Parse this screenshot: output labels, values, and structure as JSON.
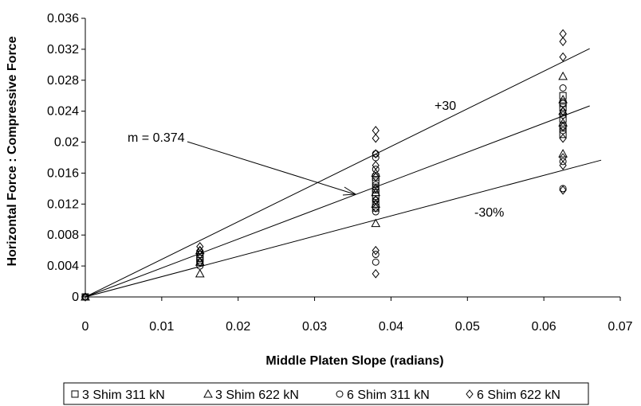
{
  "chart_data": {
    "type": "scatter",
    "title": "",
    "xlabel": "Middle Platen Slope (radians)",
    "ylabel": "Horizontal Force : Compressive Force",
    "xlim": [
      0,
      0.07
    ],
    "ylim": [
      0,
      0.036
    ],
    "x_ticks": [
      "0",
      "0.01",
      "0.02",
      "0.03",
      "0.04",
      "0.05",
      "0.06",
      "0.07"
    ],
    "y_ticks": [
      "0",
      "0.004",
      "0.008",
      "0.012",
      "0.016",
      "0.02",
      "0.024",
      "0.028",
      "0.032",
      "0.036"
    ],
    "grid": false,
    "legend_position": "bottom",
    "series": [
      {
        "name": "3 Shim 311 kN",
        "marker": "square",
        "x": [
          0,
          0.015,
          0.015,
          0.015,
          0.038,
          0.038,
          0.038,
          0.038,
          0.038,
          0.038,
          0.038,
          0.0625,
          0.0625,
          0.0625,
          0.0625,
          0.0625,
          0.0625
        ],
        "y": [
          0,
          0.0045,
          0.005,
          0.0055,
          0.0115,
          0.012,
          0.013,
          0.0135,
          0.014,
          0.015,
          0.0155,
          0.021,
          0.022,
          0.023,
          0.0245,
          0.025,
          0.026
        ]
      },
      {
        "name": "3 Shim 622 kN",
        "marker": "triangle",
        "x": [
          0,
          0.015,
          0.015,
          0.015,
          0.038,
          0.038,
          0.038,
          0.038,
          0.0625,
          0.0625,
          0.0625,
          0.0625,
          0.0625
        ],
        "y": [
          0,
          0.003,
          0.0045,
          0.006,
          0.0095,
          0.012,
          0.0135,
          0.016,
          0.0185,
          0.0225,
          0.024,
          0.0255,
          0.0285
        ]
      },
      {
        "name": "6 Shim 311 kN",
        "marker": "circle",
        "x": [
          0,
          0.015,
          0.015,
          0.038,
          0.038,
          0.038,
          0.038,
          0.038,
          0.038,
          0.038,
          0.038,
          0.0625,
          0.0625,
          0.0625,
          0.0625,
          0.0625,
          0.0625
        ],
        "y": [
          0,
          0.004,
          0.005,
          0.0045,
          0.0055,
          0.011,
          0.0125,
          0.0145,
          0.0165,
          0.018,
          0.0185,
          0.014,
          0.0175,
          0.0215,
          0.0235,
          0.025,
          0.027
        ]
      },
      {
        "name": "6 Shim 622 kN",
        "marker": "diamond",
        "x": [
          0,
          0.015,
          0.015,
          0.015,
          0.015,
          0.038,
          0.038,
          0.038,
          0.038,
          0.038,
          0.038,
          0.038,
          0.038,
          0.038,
          0.038,
          0.0625,
          0.0625,
          0.0625,
          0.0625,
          0.0625,
          0.0625,
          0.0625,
          0.0625,
          0.0625
        ],
        "y": [
          0,
          0.0045,
          0.0055,
          0.006,
          0.0065,
          0.003,
          0.006,
          0.0115,
          0.0125,
          0.014,
          0.0155,
          0.017,
          0.0185,
          0.0205,
          0.0215,
          0.0138,
          0.017,
          0.018,
          0.0205,
          0.022,
          0.024,
          0.031,
          0.033,
          0.034
        ]
      }
    ],
    "lines": [
      {
        "slope": 0.4862,
        "x_end": 0.066,
        "label": "+30"
      },
      {
        "slope": 0.374,
        "x_end": 0.066,
        "label": ""
      },
      {
        "slope": 0.2618,
        "x_end": 0.0675,
        "label": "-30%"
      }
    ],
    "annotations": [
      {
        "text": "m = 0.374",
        "arrow_to": [
          0.0355,
          0.0135
        ]
      },
      {
        "text": "+30"
      },
      {
        "text": "-30%"
      }
    ]
  }
}
